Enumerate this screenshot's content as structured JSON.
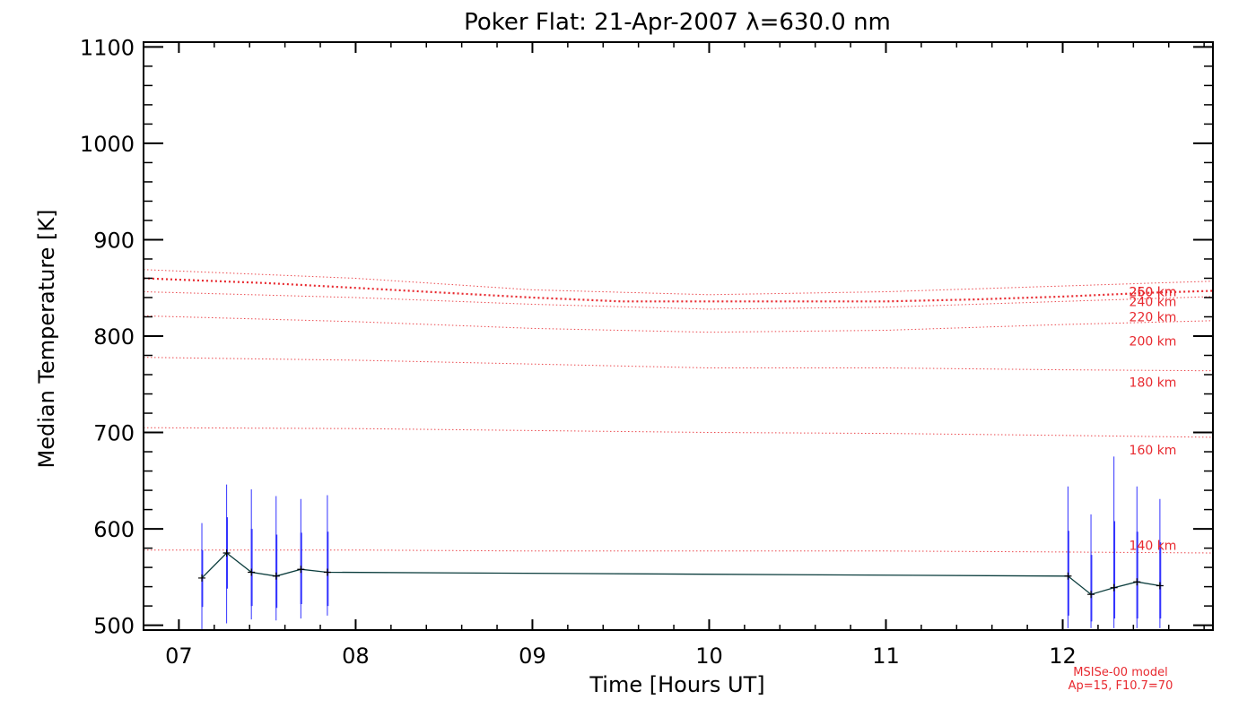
{
  "chart_data": {
    "type": "line",
    "title": "Poker Flat: 21-Apr-2007 λ=630.0 nm",
    "xlabel": "Time [Hours UT]",
    "ylabel": "Median Temperature [K]",
    "xlim": [
      6.8,
      12.85
    ],
    "ylim": [
      495,
      1105
    ],
    "x_ticks": [
      7,
      8,
      9,
      10,
      11,
      12
    ],
    "x_tick_labels": [
      "07",
      "08",
      "09",
      "10",
      "11",
      "12"
    ],
    "y_ticks": [
      500,
      600,
      700,
      800,
      900,
      1000,
      1100
    ],
    "y_tick_labels": [
      "500",
      "600",
      "700",
      "800",
      "900",
      "1000",
      "1100"
    ],
    "grid": false,
    "measured": {
      "color": "#0b3d3d",
      "error_color": "#3333ff",
      "points": [
        {
          "x": 7.13,
          "y": 549,
          "lo": 495,
          "hi": 606,
          "lo1": 519,
          "hi1": 578
        },
        {
          "x": 7.27,
          "y": 575,
          "lo": 502,
          "hi": 646,
          "lo1": 538,
          "hi1": 612
        },
        {
          "x": 7.41,
          "y": 555,
          "lo": 506,
          "hi": 641,
          "lo1": 520,
          "hi1": 600
        },
        {
          "x": 7.55,
          "y": 551,
          "lo": 505,
          "hi": 634,
          "lo1": 518,
          "hi1": 594
        },
        {
          "x": 7.69,
          "y": 558,
          "lo": 507,
          "hi": 631,
          "lo1": 522,
          "hi1": 596
        },
        {
          "x": 7.84,
          "y": 555,
          "lo": 510,
          "hi": 635,
          "lo1": 520,
          "hi1": 597
        },
        {
          "x": 12.03,
          "y": 551,
          "lo": 497,
          "hi": 644,
          "lo1": 510,
          "hi1": 598
        },
        {
          "x": 12.16,
          "y": 532,
          "lo": 497,
          "hi": 615,
          "lo1": 504,
          "hi1": 573
        },
        {
          "x": 12.29,
          "y": 539,
          "lo": 497,
          "hi": 675,
          "lo1": 507,
          "hi1": 608
        },
        {
          "x": 12.42,
          "y": 545,
          "lo": 497,
          "hi": 644,
          "lo1": 507,
          "hi1": 597
        },
        {
          "x": 12.55,
          "y": 541,
          "lo": 497,
          "hi": 631,
          "lo1": 507,
          "hi1": 586
        }
      ]
    },
    "model": {
      "name": "MSISe-00 model",
      "params": "Ap=15, F10.7=70",
      "color": "#e8292f",
      "highlight_label": "250 km",
      "highlight_curve": {
        "x": [
          6.8,
          7.5,
          8.0,
          8.5,
          9.0,
          9.5,
          10.0,
          10.5,
          11.0,
          11.5,
          12.0,
          12.5,
          12.85
        ],
        "y": [
          860,
          855,
          850,
          845,
          840,
          836,
          836,
          836,
          836,
          838,
          841,
          845,
          847
        ]
      },
      "altitudes": [
        {
          "label": "260 km",
          "x": [
            6.8,
            8.0,
            9.0,
            10.0,
            11.0,
            12.0,
            12.85
          ],
          "y": [
            869,
            860,
            848,
            843,
            846,
            852,
            857
          ],
          "label_y": 846
        },
        {
          "label": "240 km",
          "x": [
            6.8,
            8.0,
            9.0,
            10.0,
            11.0,
            12.0,
            12.85
          ],
          "y": [
            846,
            840,
            833,
            828,
            830,
            836,
            841
          ],
          "label_y": 836
        },
        {
          "label": "220 km",
          "x": [
            6.8,
            8.0,
            9.0,
            10.0,
            11.0,
            12.0,
            12.85
          ],
          "y": [
            821,
            815,
            808,
            804,
            806,
            812,
            816
          ],
          "label_y": 820
        },
        {
          "label": "200 km",
          "x": [
            6.8,
            8.0,
            9.0,
            10.0,
            11.0,
            12.0,
            12.85
          ],
          "y": [
            778,
            775,
            771,
            767,
            767,
            765,
            764
          ],
          "label_y": 795
        },
        {
          "label": "180 km",
          "x": [
            6.8,
            8.0,
            9.0,
            10.0,
            11.0,
            12.0,
            12.85
          ],
          "y": [
            705,
            704,
            702,
            700,
            699,
            697,
            695
          ],
          "label_y": 752
        },
        {
          "label": "160 km",
          "x": [
            6.8,
            8.0,
            9.0,
            10.0,
            11.0,
            12.0,
            12.85
          ],
          "y": [
            578,
            578,
            577,
            577,
            577,
            576,
            575
          ],
          "label_y": 682
        },
        {
          "label": "140 km",
          "x": [],
          "y": [],
          "label_y": 583
        }
      ]
    }
  }
}
